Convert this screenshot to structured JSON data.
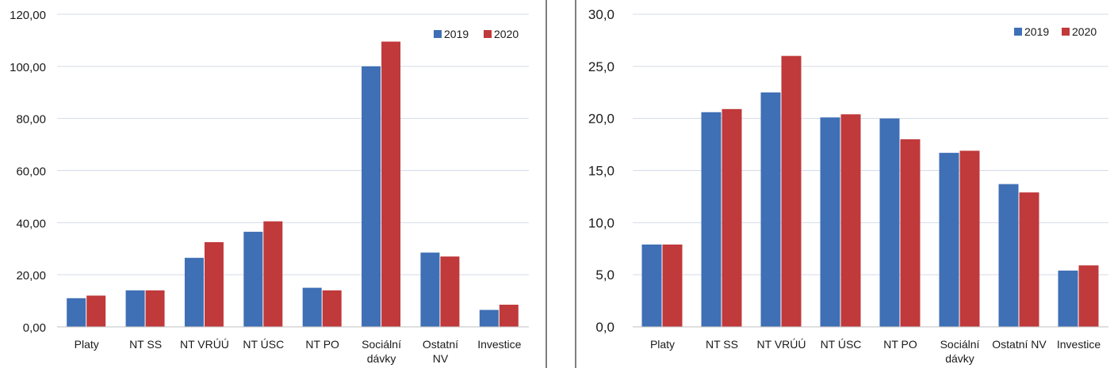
{
  "chart_data": [
    {
      "type": "bar",
      "categories": [
        "Platy",
        "NT SS",
        "NT VRÚÚ",
        "NT ÚSC",
        "NT PO",
        "Sociální dávky",
        "Ostatní NV",
        "Investice"
      ],
      "series": [
        {
          "name": "2019",
          "values": [
            11,
            14,
            26.5,
            36.5,
            15,
            100,
            28.5,
            6.5
          ]
        },
        {
          "name": "2020",
          "values": [
            12,
            14,
            32.5,
            40.5,
            14,
            109.5,
            27,
            8.5
          ]
        }
      ],
      "ylim": [
        0,
        120
      ],
      "yticks": [
        "0,00",
        "20,00",
        "40,00",
        "60,00",
        "80,00",
        "100,00",
        "120,00"
      ],
      "grid": true,
      "legend_position": "top-right",
      "colors": [
        "#3f6fb5",
        "#c0393b"
      ]
    },
    {
      "type": "bar",
      "categories": [
        "Platy",
        "NT SS",
        "NT VRÚÚ",
        "NT ÚSC",
        "NT PO",
        "Sociální dávky",
        "Ostatní NV",
        "Investice"
      ],
      "series": [
        {
          "name": "2019",
          "values": [
            7.9,
            20.6,
            22.5,
            20.1,
            20.0,
            16.7,
            13.7,
            5.4
          ]
        },
        {
          "name": "2020",
          "values": [
            7.9,
            20.9,
            26.0,
            20.4,
            18.0,
            16.9,
            12.9,
            5.9
          ]
        }
      ],
      "ylim": [
        0,
        30
      ],
      "yticks": [
        "0,0",
        "5,0",
        "10,0",
        "15,0",
        "20,0",
        "25,0",
        "30,0"
      ],
      "grid": true,
      "legend_position": "top-right",
      "colors": [
        "#3f6fb5",
        "#c0393b"
      ]
    }
  ]
}
